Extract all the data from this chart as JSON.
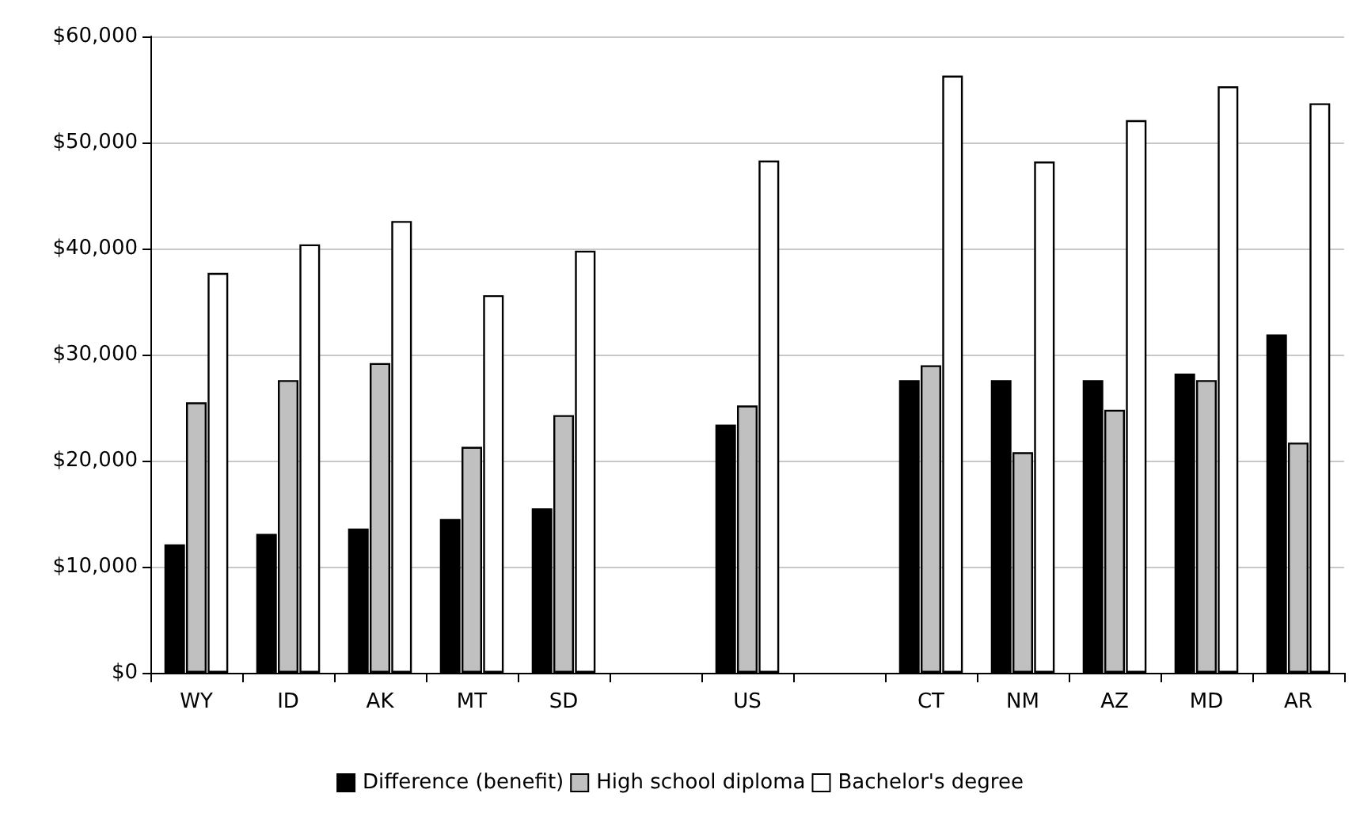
{
  "chart_data": {
    "type": "bar",
    "categories": [
      "WY",
      "ID",
      "AK",
      "MT",
      "SD",
      null,
      "US",
      null,
      "CT",
      "NM",
      "AZ",
      "MD",
      "AR"
    ],
    "series": [
      {
        "name": "Difference (benefit)",
        "color": "#000000",
        "values": [
          12100,
          13100,
          13600,
          14500,
          15500,
          null,
          23400,
          null,
          27600,
          27600,
          27600,
          28200,
          31900
        ]
      },
      {
        "name": "High school diploma",
        "color": "#c0c0c0",
        "values": [
          25500,
          27600,
          29200,
          21300,
          24300,
          null,
          25200,
          null,
          29000,
          20800,
          24800,
          27600,
          21700
        ]
      },
      {
        "name": "Bachelor's degree",
        "color": "#ffffff",
        "values": [
          37700,
          40400,
          42600,
          35600,
          39800,
          null,
          48300,
          null,
          56300,
          48200,
          52100,
          55300,
          53700
        ]
      }
    ],
    "ylim": [
      0,
      60000
    ],
    "yticks": [
      {
        "value": 0,
        "label": "$0"
      },
      {
        "value": 10000,
        "label": "$10,000"
      },
      {
        "value": 20000,
        "label": "$20,000"
      },
      {
        "value": 30000,
        "label": "$30,000"
      },
      {
        "value": 40000,
        "label": "$40,000"
      },
      {
        "value": 50000,
        "label": "$50,000"
      },
      {
        "value": 60000,
        "label": "$60,000"
      }
    ],
    "grid": "y",
    "legend": "bottom"
  }
}
